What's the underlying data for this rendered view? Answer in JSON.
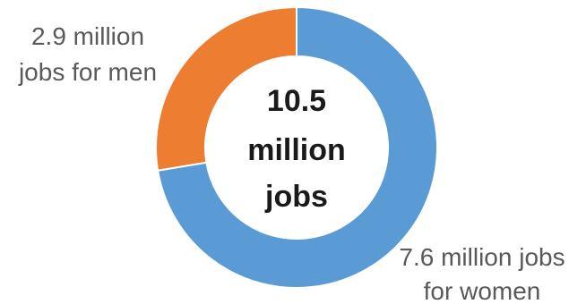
{
  "chart_data": {
    "type": "pie",
    "variant": "donut",
    "categories": [
      "7.6 million jobs for women",
      "2.9 million jobs for men"
    ],
    "values": [
      7.6,
      2.9
    ],
    "total": 10.5,
    "center_text": [
      "10.5",
      "million",
      "jobs"
    ],
    "colors": [
      "#5b9bd5",
      "#ed7d31"
    ],
    "slice_labels": [
      [
        "7.6 million jobs",
        "for women"
      ],
      [
        "2.9 million",
        "jobs for men"
      ]
    ]
  }
}
